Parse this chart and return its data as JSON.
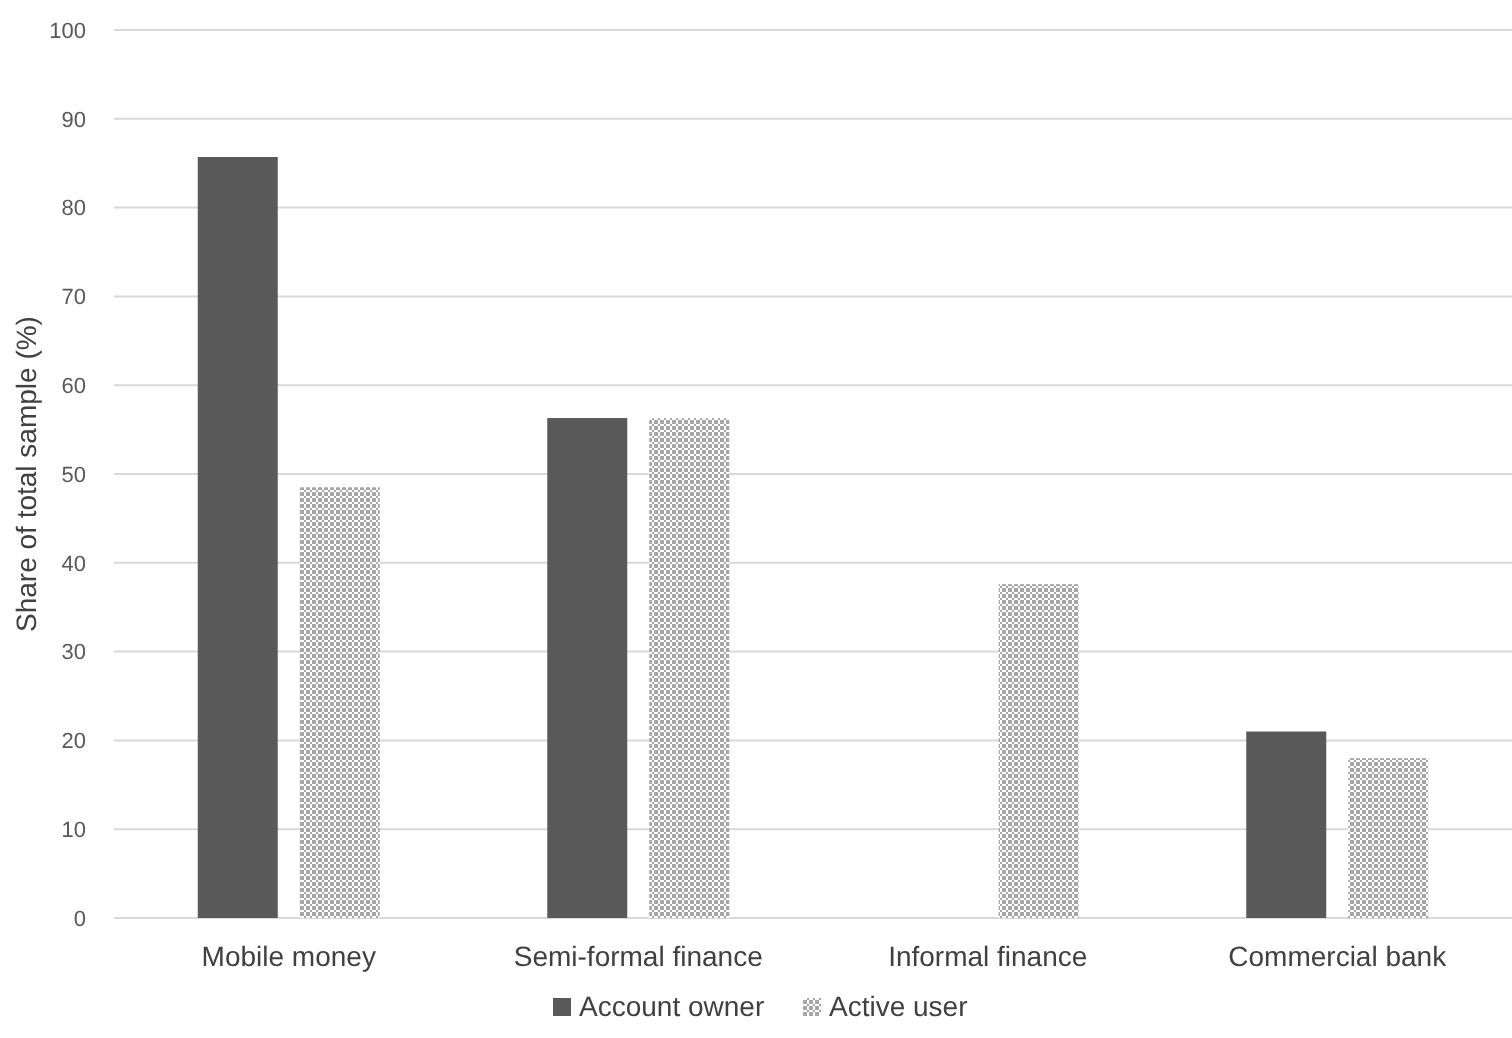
{
  "chart_data": {
    "type": "bar",
    "ylabel": "Share of total sample (%)",
    "categories": [
      "Mobile money",
      "Semi-formal finance",
      "Informal finance",
      "Commercial bank"
    ],
    "series": [
      {
        "name": "Account owner",
        "color": "#595959",
        "values": [
          85.7,
          56.3,
          0,
          21
        ]
      },
      {
        "name": "Active user",
        "color": "#a6a6a6",
        "values": [
          48.5,
          56.3,
          37.6,
          18
        ]
      }
    ],
    "ylim": [
      0,
      100
    ],
    "yticks": [
      0,
      10,
      20,
      30,
      40,
      50,
      60,
      70,
      80,
      90,
      100
    ],
    "grid": "y",
    "legend": "bottom"
  }
}
